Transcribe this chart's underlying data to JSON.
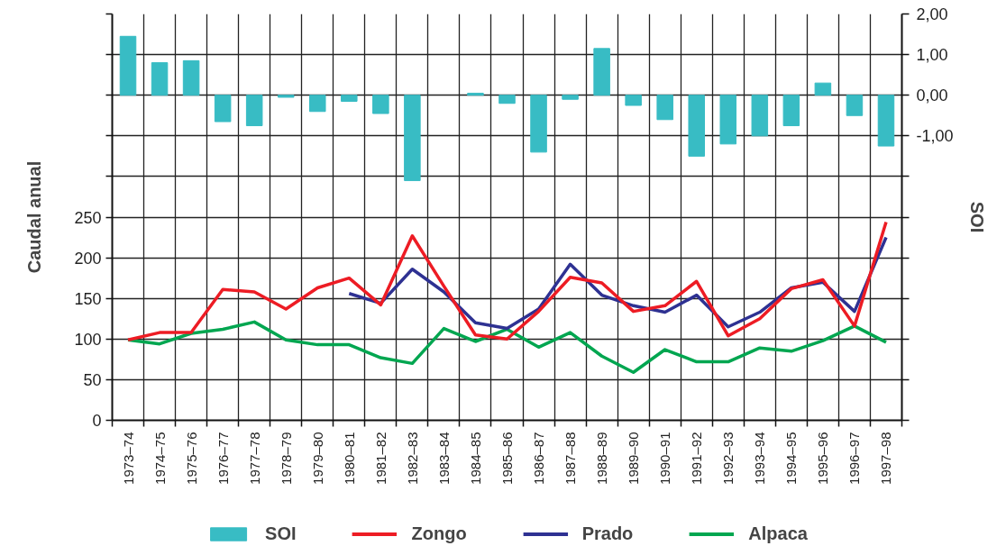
{
  "chart_data": {
    "type": "line",
    "categories": [
      "1973–74",
      "1974–75",
      "1975–76",
      "1976–77",
      "1977–78",
      "1978–79",
      "1979–80",
      "1980–81",
      "1981–82",
      "1982–83",
      "1983–84",
      "1984–85",
      "1985–86",
      "1986–87",
      "1987–88",
      "1988–89",
      "1989–90",
      "1990–91",
      "1991–92",
      "1992–93",
      "1993–94",
      "1994–95",
      "1995–96",
      "1996–97",
      "1997–98"
    ],
    "ylabel": "Caudal anual",
    "y2label": "SOI",
    "ylim": [
      0,
      500
    ],
    "yticks": [
      0,
      50,
      100,
      150,
      200,
      250,
      {
        "value": 300,
        "label": null
      },
      {
        "value": 350,
        "label": null
      },
      {
        "value": 400,
        "label": null
      },
      {
        "value": 450,
        "label": null
      },
      {
        "value": 500,
        "label": null
      }
    ],
    "y2lim": [
      -8,
      2
    ],
    "y2ticks": [
      {
        "value": 2,
        "label": "2,00"
      },
      {
        "value": 1,
        "label": "1,00"
      },
      {
        "value": 0,
        "label": "0,00"
      },
      {
        "value": -1,
        "label": "-1,00"
      },
      {
        "value": -2,
        "label": null
      },
      {
        "value": -3,
        "label": null
      },
      {
        "value": -4,
        "label": null
      },
      {
        "value": -5,
        "label": null
      },
      {
        "value": -6,
        "label": null
      },
      {
        "value": -7,
        "label": null
      },
      {
        "value": -8,
        "label": null
      }
    ],
    "grid": true,
    "legend": "bottom",
    "series": [
      {
        "name": "SOI",
        "type": "bar",
        "axis": "y2",
        "color": "#38bcc4",
        "values": [
          1.45,
          0.8,
          0.85,
          -0.65,
          -0.75,
          -0.05,
          -0.4,
          -0.15,
          -0.45,
          -2.1,
          null,
          0.05,
          -0.2,
          -1.4,
          -0.1,
          1.15,
          -0.25,
          -0.6,
          -1.5,
          -1.2,
          -1.0,
          -0.75,
          0.3,
          -0.5,
          -1.25
        ]
      },
      {
        "name": "Zongo",
        "color": "#ed1c24",
        "values": [
          99,
          108,
          108,
          161,
          158,
          137,
          163,
          175,
          142,
          227,
          165,
          105,
          100,
          134,
          176,
          169,
          134,
          141,
          171,
          104,
          125,
          162,
          173,
          116,
          244
        ]
      },
      {
        "name": "Prado",
        "color": "#2e3192",
        "values": [
          null,
          null,
          null,
          null,
          null,
          null,
          null,
          156,
          144,
          186,
          158,
          120,
          113,
          137,
          192,
          154,
          141,
          133,
          154,
          115,
          133,
          163,
          170,
          134,
          225
        ]
      },
      {
        "name": "Alpaca",
        "color": "#00a650",
        "values": [
          99,
          94,
          107,
          112,
          121,
          99,
          93,
          93,
          77,
          70,
          113,
          97,
          112,
          90,
          108,
          79,
          59,
          87,
          72,
          72,
          89,
          85,
          98,
          116,
          96
        ]
      }
    ]
  }
}
